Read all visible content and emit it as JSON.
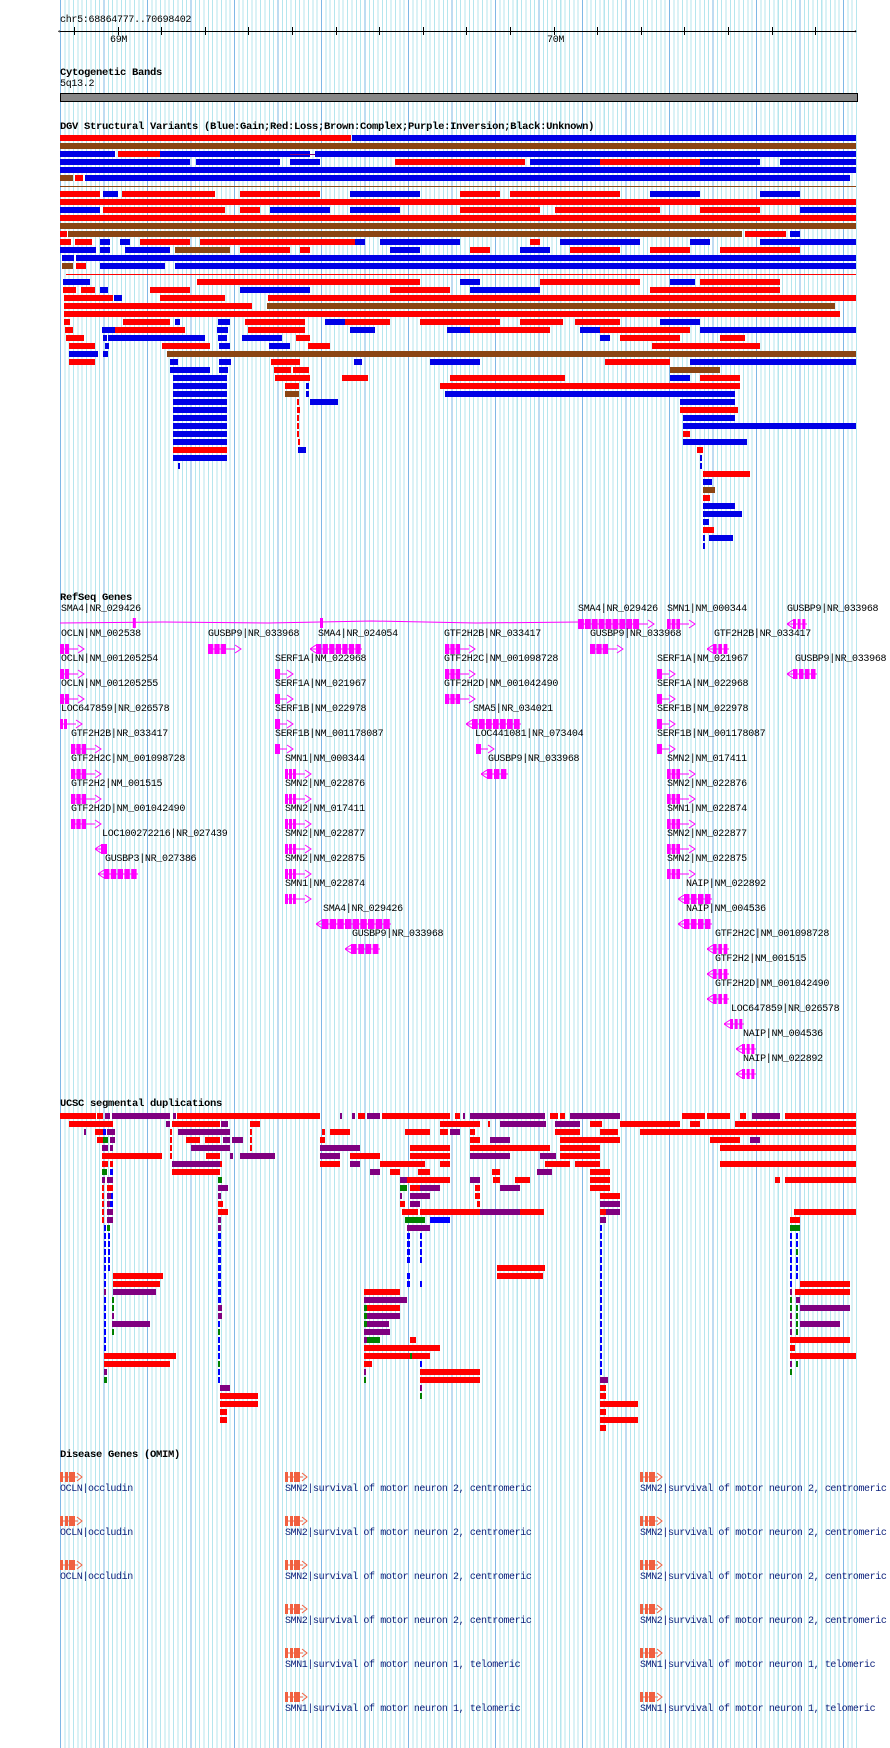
{
  "position": "chr5:68864777..70698402",
  "ruler": {
    "ticks": [
      {
        "label": "69M"
      },
      {
        "label": "70M"
      }
    ]
  },
  "tracks": {
    "cytoband": {
      "title": "Cytogenetic Bands",
      "band": "5q13.2"
    },
    "dgv": {
      "title": "DGV Structural Variants (Blue:Gain;Red:Loss;Brown:Complex;Purple:Inversion;Black:Unknown)",
      "legend": [
        {
          "type": "Gain",
          "color": "#0000e6"
        },
        {
          "type": "Loss",
          "color": "#ff0000"
        },
        {
          "type": "Complex",
          "color": "#8b4513"
        },
        {
          "type": "Inversion",
          "color": "#800080"
        },
        {
          "type": "Unknown",
          "color": "#000000"
        }
      ]
    },
    "refseq": {
      "title": "RefSeq Genes",
      "color": "#ff00ff",
      "genes": [
        {
          "label": "SMA4|NR_029426",
          "strand": "-"
        },
        {
          "label": "OCLN|NM_002538",
          "strand": "+"
        },
        {
          "label": "OCLN|NM_001205254",
          "strand": "+"
        },
        {
          "label": "OCLN|NM_001205255",
          "strand": "+"
        },
        {
          "label": "LOC647859|NR_026578",
          "strand": "+"
        },
        {
          "label": "GTF2H2B|NR_033417",
          "strand": "+"
        },
        {
          "label": "GTF2H2C|NM_001098728",
          "strand": "+"
        },
        {
          "label": "GTF2H2|NM_001515",
          "strand": "+"
        },
        {
          "label": "GTF2H2D|NM_001042490",
          "strand": "+"
        },
        {
          "label": "LOC100272216|NR_027439",
          "strand": "-"
        },
        {
          "label": "GUSBP3|NR_027386",
          "strand": "-"
        },
        {
          "label": "GUSBP9|NR_033968",
          "strand": "+"
        },
        {
          "label": "SMA4|NR_024054",
          "strand": "-"
        },
        {
          "label": "SERF1A|NM_022968",
          "strand": "+"
        },
        {
          "label": "SERF1A|NM_021967",
          "strand": "+"
        },
        {
          "label": "SERF1B|NM_022978",
          "strand": "+"
        },
        {
          "label": "SERF1B|NM_001178087",
          "strand": "+"
        },
        {
          "label": "SMN1|NM_000344",
          "strand": "+"
        },
        {
          "label": "SMN2|NM_022876",
          "strand": "+"
        },
        {
          "label": "SMN2|NM_017411",
          "strand": "+"
        },
        {
          "label": "SMN2|NM_022877",
          "strand": "+"
        },
        {
          "label": "SMN2|NM_022875",
          "strand": "+"
        },
        {
          "label": "SMN1|NM_022874",
          "strand": "+"
        },
        {
          "label": "SMA4|NR_029426",
          "strand": "-"
        },
        {
          "label": "GUSBP9|NR_033968",
          "strand": "-"
        },
        {
          "label": "GTF2H2B|NR_033417",
          "strand": "+"
        },
        {
          "label": "GTF2H2C|NM_001098728",
          "strand": "+"
        },
        {
          "label": "GTF2H2D|NM_001042490",
          "strand": "+"
        },
        {
          "label": "SMA5|NR_034021",
          "strand": "-"
        },
        {
          "label": "LOC441081|NR_073404",
          "strand": "+"
        },
        {
          "label": "GUSBP9|NR_033968",
          "strand": "-"
        },
        {
          "label": "SMA4|NR_029426",
          "strand": "+"
        },
        {
          "label": "GUSBP9|NR_033968",
          "strand": "+"
        },
        {
          "label": "SMN1|NM_000344",
          "strand": "+"
        },
        {
          "label": "SERF1A|NM_021967",
          "strand": "+"
        },
        {
          "label": "SERF1A|NM_022968",
          "strand": "+"
        },
        {
          "label": "SERF1B|NM_022978",
          "strand": "+"
        },
        {
          "label": "SERF1B|NM_001178087",
          "strand": "+"
        },
        {
          "label": "SMN2|NM_017411",
          "strand": "+"
        },
        {
          "label": "SMN2|NM_022876",
          "strand": "+"
        },
        {
          "label": "SMN1|NM_022874",
          "strand": "+"
        },
        {
          "label": "SMN2|NM_022877",
          "strand": "+"
        },
        {
          "label": "SMN2|NM_022875",
          "strand": "+"
        },
        {
          "label": "NAIP|NM_022892",
          "strand": "-"
        },
        {
          "label": "NAIP|NM_004536",
          "strand": "-"
        },
        {
          "label": "GTF2H2B|NR_033417",
          "strand": "-"
        },
        {
          "label": "GTF2H2C|NM_001098728",
          "strand": "-"
        },
        {
          "label": "GTF2H2|NM_001515",
          "strand": "-"
        },
        {
          "label": "GTF2H2D|NM_001042490",
          "strand": "-"
        },
        {
          "label": "LOC647859|NR_026578",
          "strand": "-"
        },
        {
          "label": "NAIP|NM_004536",
          "strand": "-"
        },
        {
          "label": "NAIP|NM_022892",
          "strand": "-"
        },
        {
          "label": "GUSBP9|NR_033968",
          "strand": "-"
        },
        {
          "label": "GUSBP9|NR_033968",
          "strand": "-"
        }
      ]
    },
    "segdup": {
      "title": "UCSC segmental duplications",
      "colors": {
        "high": "#ff0000",
        "mid": "#800080",
        "low": "#008000",
        "blue": "#0000ff"
      }
    },
    "omim": {
      "title": "Disease Genes (OMIM)",
      "color": "#f06040",
      "entries": [
        {
          "label": "OCLN|occludin"
        },
        {
          "label": "OCLN|occludin"
        },
        {
          "label": "OCLN|occludin"
        },
        {
          "label": "SMN2|survival of motor neuron 2, centromeric"
        },
        {
          "label": "SMN2|survival of motor neuron 2, centromeric"
        },
        {
          "label": "SMN2|survival of motor neuron 2, centromeric"
        },
        {
          "label": "SMN2|survival of motor neuron 2, centromeric"
        },
        {
          "label": "SMN1|survival of motor neuron 1, telomeric"
        },
        {
          "label": "SMN1|survival of motor neuron 1, telomeric"
        },
        {
          "label": "SMN2|survival of motor neuron 2, centromeric"
        },
        {
          "label": "SMN2|survival of motor neuron 2, centromeric"
        },
        {
          "label": "SMN2|survival of motor neuron 2, centromeric"
        },
        {
          "label": "SMN2|survival of motor neuron 2, centromeric"
        },
        {
          "label": "SMN1|survival of motor neuron 1, telomeric"
        },
        {
          "label": "SMN1|survival of motor neuron 1, telomeric"
        }
      ]
    }
  }
}
